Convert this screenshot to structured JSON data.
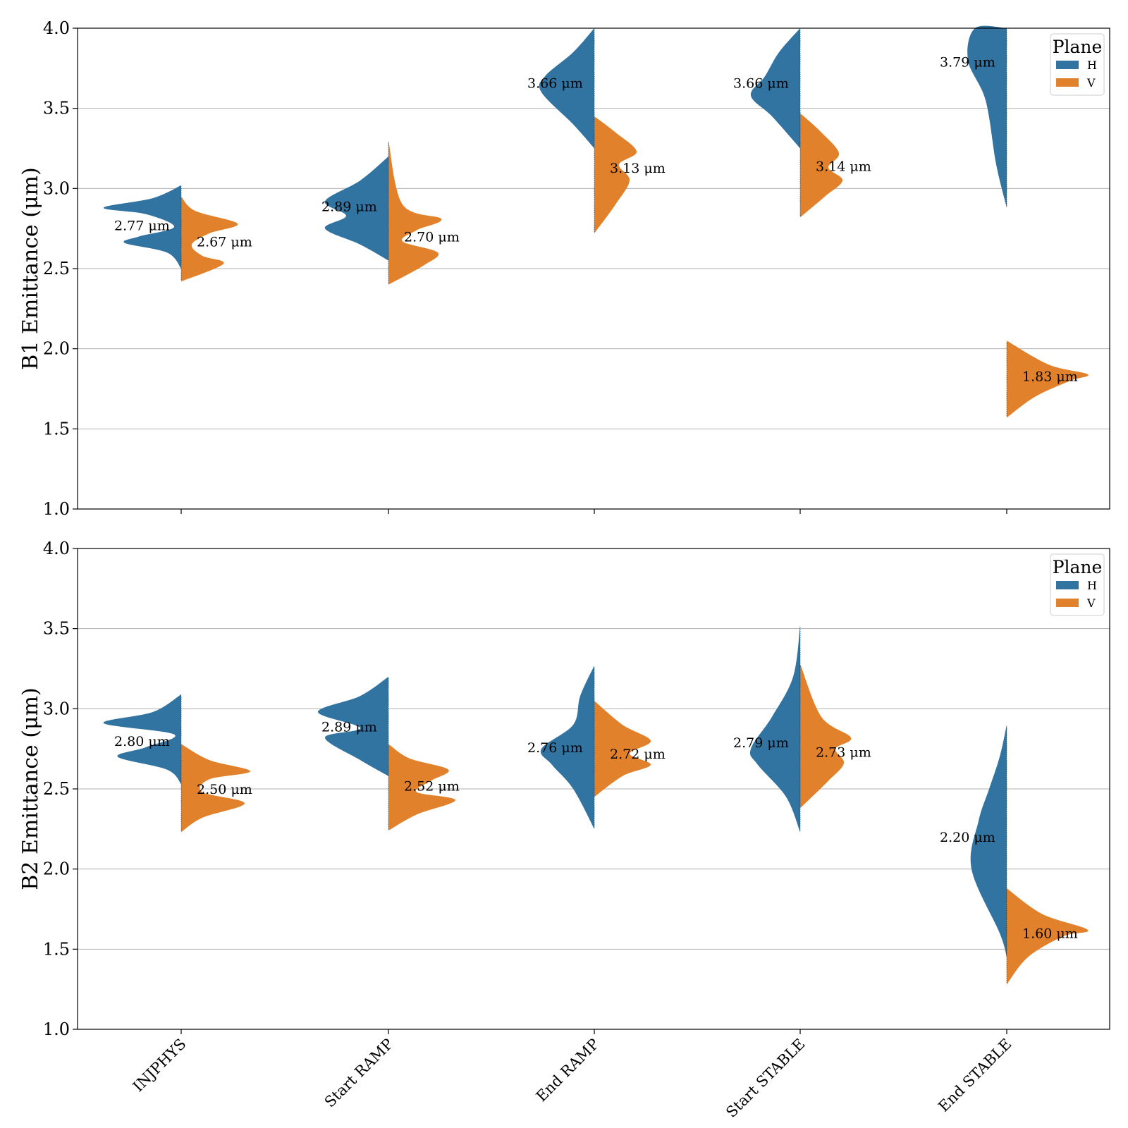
{
  "chart_data": [
    {
      "type": "violin",
      "ylabel": "B1 Emittance (μm)",
      "ylim": [
        1.0,
        4.0
      ],
      "yticks": [
        "1.0",
        "1.5",
        "2.0",
        "2.5",
        "3.0",
        "3.5",
        "4.0"
      ],
      "grid": "horizontal",
      "legend": {
        "title": "Plane",
        "placement": "top-right",
        "entries": [
          "H",
          "V"
        ]
      },
      "categories": [
        "INJPHYS",
        "Start RAMP",
        "End RAMP",
        "Start STABLE",
        "End STABLE"
      ],
      "series": [
        {
          "name": "H",
          "color": "#3274a1",
          "median_labels": [
            "2.77 μm",
            "2.89 μm",
            "3.66 μm",
            "3.66 μm",
            "3.79 μm"
          ],
          "violins": [
            {
              "profile": [
                [
                  2.5,
                  0
                ],
                [
                  2.6,
                  20
                ],
                [
                  2.66,
                  80
                ],
                [
                  2.7,
                  60
                ],
                [
                  2.76,
                  10
                ],
                [
                  2.84,
                  50
                ],
                [
                  2.88,
                  110
                ],
                [
                  2.94,
                  40
                ],
                [
                  3.02,
                  0
                ]
              ]
            },
            {
              "profile": [
                [
                  2.55,
                  0
                ],
                [
                  2.65,
                  40
                ],
                [
                  2.75,
                  90
                ],
                [
                  2.83,
                  60
                ],
                [
                  2.92,
                  90
                ],
                [
                  3.05,
                  40
                ],
                [
                  3.2,
                  0
                ]
              ]
            },
            {
              "profile": [
                [
                  3.25,
                  0
                ],
                [
                  3.4,
                  30
                ],
                [
                  3.6,
                  75
                ],
                [
                  3.7,
                  70
                ],
                [
                  3.85,
                  30
                ],
                [
                  4.0,
                  0
                ]
              ]
            },
            {
              "profile": [
                [
                  3.25,
                  0
                ],
                [
                  3.45,
                  40
                ],
                [
                  3.58,
                  70
                ],
                [
                  3.7,
                  50
                ],
                [
                  3.85,
                  30
                ],
                [
                  4.0,
                  0
                ]
              ]
            },
            {
              "profile": [
                [
                  2.88,
                  0
                ],
                [
                  3.15,
                  15
                ],
                [
                  3.55,
                  30
                ],
                [
                  3.8,
                  55
                ],
                [
                  4.0,
                  45
                ]
              ]
            }
          ]
        },
        {
          "name": "V",
          "color": "#e1812c",
          "median_labels": [
            "2.67 μm",
            "2.70 μm",
            "3.13 μm",
            "3.14 μm",
            "1.83 μm"
          ],
          "violins": [
            {
              "profile": [
                [
                  2.42,
                  0
                ],
                [
                  2.53,
                  60
                ],
                [
                  2.58,
                  30
                ],
                [
                  2.65,
                  15
                ],
                [
                  2.72,
                  40
                ],
                [
                  2.78,
                  80
                ],
                [
                  2.86,
                  20
                ],
                [
                  2.95,
                  0
                ]
              ]
            },
            {
              "profile": [
                [
                  2.4,
                  0
                ],
                [
                  2.52,
                  50
                ],
                [
                  2.6,
                  70
                ],
                [
                  2.67,
                  20
                ],
                [
                  2.74,
                  40
                ],
                [
                  2.81,
                  75
                ],
                [
                  2.9,
                  20
                ],
                [
                  3.3,
                  0
                ]
              ]
            },
            {
              "profile": [
                [
                  2.72,
                  0
                ],
                [
                  2.9,
                  30
                ],
                [
                  3.05,
                  50
                ],
                [
                  3.15,
                  35
                ],
                [
                  3.23,
                  60
                ],
                [
                  3.35,
                  30
                ],
                [
                  3.45,
                  0
                ]
              ]
            },
            {
              "profile": [
                [
                  2.82,
                  0
                ],
                [
                  2.95,
                  35
                ],
                [
                  3.05,
                  60
                ],
                [
                  3.13,
                  40
                ],
                [
                  3.22,
                  55
                ],
                [
                  3.35,
                  30
                ],
                [
                  3.47,
                  0
                ]
              ]
            },
            {
              "profile": [
                [
                  1.57,
                  0
                ],
                [
                  1.7,
                  40
                ],
                [
                  1.8,
                  90
                ],
                [
                  1.84,
                  115
                ],
                [
                  1.9,
                  60
                ],
                [
                  2.05,
                  0
                ]
              ]
            }
          ]
        }
      ]
    },
    {
      "type": "violin",
      "ylabel": "B2 Emittance (μm)",
      "xlabel": "",
      "ylim": [
        1.0,
        4.0
      ],
      "yticks": [
        "1.0",
        "1.5",
        "2.0",
        "2.5",
        "3.0",
        "3.5",
        "4.0"
      ],
      "grid": "horizontal",
      "legend": {
        "title": "Plane",
        "placement": "top-right",
        "entries": [
          "H",
          "V"
        ]
      },
      "categories": [
        "INJPHYS",
        "Start RAMP",
        "End RAMP",
        "Start STABLE",
        "End STABLE"
      ],
      "series": [
        {
          "name": "H",
          "color": "#3274a1",
          "median_labels": [
            "2.80 μm",
            "2.89 μm",
            "2.76 μm",
            "2.79 μm",
            "2.20 μm"
          ],
          "violins": [
            {
              "profile": [
                [
                  2.53,
                  0
                ],
                [
                  2.62,
                  20
                ],
                [
                  2.7,
                  90
                ],
                [
                  2.76,
                  50
                ],
                [
                  2.84,
                  10
                ],
                [
                  2.91,
                  110
                ],
                [
                  2.98,
                  40
                ],
                [
                  3.09,
                  0
                ]
              ]
            },
            {
              "profile": [
                [
                  2.58,
                  0
                ],
                [
                  2.68,
                  40
                ],
                [
                  2.82,
                  90
                ],
                [
                  2.88,
                  40
                ],
                [
                  2.98,
                  100
                ],
                [
                  3.08,
                  40
                ],
                [
                  3.2,
                  0
                ]
              ]
            },
            {
              "profile": [
                [
                  2.25,
                  0
                ],
                [
                  2.5,
                  30
                ],
                [
                  2.65,
                  60
                ],
                [
                  2.75,
                  75
                ],
                [
                  2.9,
                  30
                ],
                [
                  3.08,
                  20
                ],
                [
                  3.27,
                  0
                ]
              ]
            },
            {
              "profile": [
                [
                  2.23,
                  0
                ],
                [
                  2.45,
                  20
                ],
                [
                  2.65,
                  60
                ],
                [
                  2.75,
                  70
                ],
                [
                  2.95,
                  40
                ],
                [
                  3.2,
                  10
                ],
                [
                  3.52,
                  0
                ]
              ]
            },
            {
              "profile": [
                [
                  1.45,
                  0
                ],
                [
                  1.6,
                  10
                ],
                [
                  2.0,
                  50
                ],
                [
                  2.3,
                  40
                ],
                [
                  2.5,
                  25
                ],
                [
                  2.7,
                  10
                ],
                [
                  2.9,
                  0
                ]
              ]
            }
          ]
        },
        {
          "name": "V",
          "color": "#e1812c",
          "median_labels": [
            "2.50 μm",
            "2.52 μm",
            "2.72 μm",
            "2.73 μm",
            "1.60 μm"
          ],
          "violins": [
            {
              "profile": [
                [
                  2.23,
                  0
                ],
                [
                  2.32,
                  30
                ],
                [
                  2.41,
                  90
                ],
                [
                  2.48,
                  30
                ],
                [
                  2.56,
                  40
                ],
                [
                  2.61,
                  98
                ],
                [
                  2.68,
                  40
                ],
                [
                  2.78,
                  0
                ]
              ]
            },
            {
              "profile": [
                [
                  2.24,
                  0
                ],
                [
                  2.34,
                  40
                ],
                [
                  2.43,
                  95
                ],
                [
                  2.48,
                  40
                ],
                [
                  2.55,
                  60
                ],
                [
                  2.62,
                  85
                ],
                [
                  2.69,
                  30
                ],
                [
                  2.78,
                  0
                ]
              ]
            },
            {
              "profile": [
                [
                  2.45,
                  0
                ],
                [
                  2.58,
                  40
                ],
                [
                  2.65,
                  80
                ],
                [
                  2.72,
                  50
                ],
                [
                  2.8,
                  80
                ],
                [
                  2.9,
                  40
                ],
                [
                  3.05,
                  0
                ]
              ]
            },
            {
              "profile": [
                [
                  2.38,
                  0
                ],
                [
                  2.55,
                  40
                ],
                [
                  2.66,
                  62
                ],
                [
                  2.75,
                  50
                ],
                [
                  2.82,
                  72
                ],
                [
                  2.95,
                  30
                ],
                [
                  3.28,
                  0
                ]
              ]
            },
            {
              "profile": [
                [
                  1.28,
                  0
                ],
                [
                  1.45,
                  30
                ],
                [
                  1.58,
                  80
                ],
                [
                  1.62,
                  115
                ],
                [
                  1.72,
                  50
                ],
                [
                  1.88,
                  0
                ]
              ]
            }
          ]
        }
      ]
    }
  ]
}
